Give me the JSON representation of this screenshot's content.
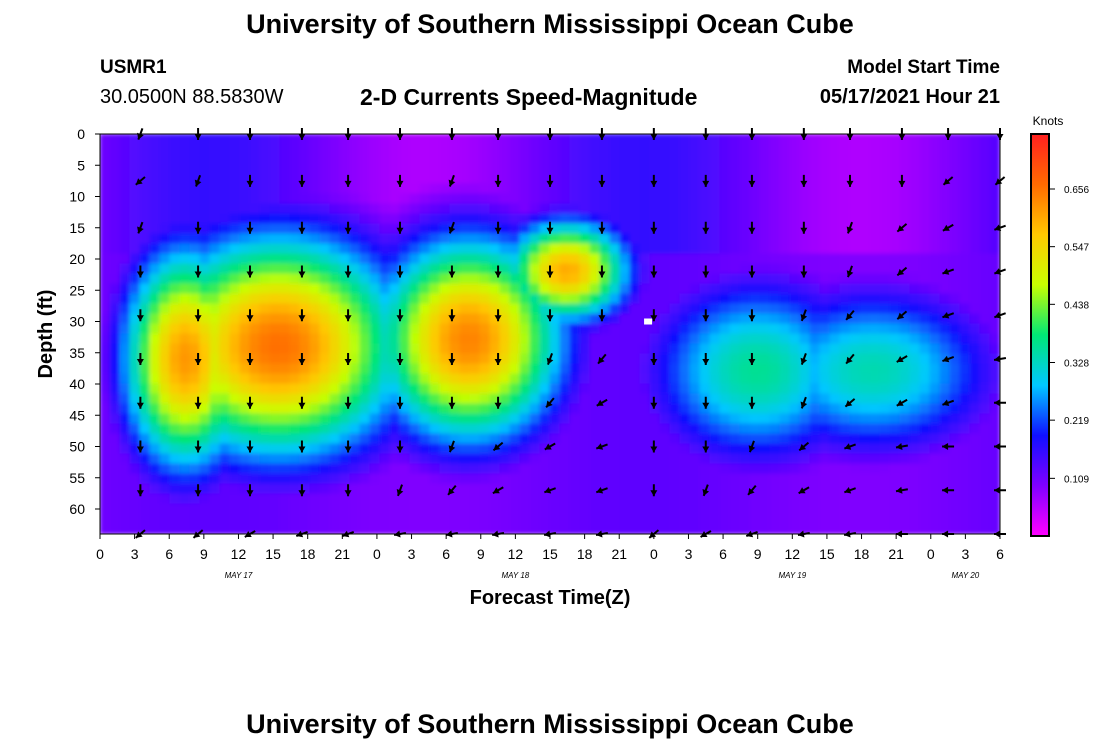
{
  "title_top": "University of Southern Mississippi Ocean Cube",
  "title_bottom": "University of Southern Mississippi Ocean Cube",
  "station": {
    "id": "USMR1",
    "coords": "30.0500N  88.5830W"
  },
  "model_start": {
    "label": "Model Start Time",
    "value": "05/17/2021 Hour 21"
  },
  "chart_data": {
    "type": "heatmap",
    "title": "2-D Currents Speed-Magnitude",
    "xlabel": "Forecast Time(Z)",
    "ylabel": "Depth (ft)",
    "x_ticks": [
      "0",
      "3",
      "6",
      "9",
      "12",
      "15",
      "18",
      "21",
      "0",
      "3",
      "6",
      "9",
      "12",
      "15",
      "18",
      "21",
      "0",
      "3",
      "6",
      "9",
      "12",
      "15",
      "18",
      "21",
      "0",
      "3",
      "6"
    ],
    "x_date_labels": [
      {
        "label": "MAY 17",
        "hour": 12
      },
      {
        "label": "MAY 18",
        "hour": 36
      },
      {
        "label": "MAY 19",
        "hour": 60
      },
      {
        "label": "MAY 20",
        "hour": 75
      }
    ],
    "x_range_hours": [
      0,
      78
    ],
    "y_ticks": [
      "0",
      "5",
      "10",
      "15",
      "20",
      "25",
      "30",
      "35",
      "40",
      "45",
      "50",
      "55",
      "60"
    ],
    "y_range_ft": [
      0,
      64
    ],
    "colorbar": {
      "label": "Knots",
      "ticks": [
        "0.656",
        "0.547",
        "0.438",
        "0.328",
        "0.219",
        "0.109"
      ],
      "range": [
        0.0,
        0.76
      ],
      "colors": [
        "#ff00ff",
        "#8000ff",
        "#1010ff",
        "#00c8ff",
        "#00e676",
        "#c8ff00",
        "#ffc800",
        "#ff6a00",
        "#ff2020"
      ]
    },
    "hotspots": [
      {
        "hour": 15.5,
        "depth": 34,
        "speed": 0.66,
        "rh": 8,
        "rd": 13
      },
      {
        "hour": 7.5,
        "depth": 36,
        "speed": 0.62,
        "rh": 4,
        "rd": 13
      },
      {
        "hour": 32,
        "depth": 33,
        "speed": 0.64,
        "rh": 6,
        "rd": 12
      },
      {
        "hour": 40.5,
        "depth": 22,
        "speed": 0.6,
        "rh": 4,
        "rd": 6
      },
      {
        "hour": 57,
        "depth": 38,
        "speed": 0.36,
        "rh": 7,
        "rd": 11
      },
      {
        "hour": 67,
        "depth": 38,
        "speed": 0.34,
        "rh": 8,
        "rd": 10
      }
    ],
    "marker": {
      "hour": 47.5,
      "depth": 30
    },
    "vectors": {
      "hours": [
        3.5,
        8.5,
        13,
        17.5,
        21.5,
        26,
        30.5,
        34.5,
        39,
        43.5,
        48,
        52.5,
        56.5,
        61,
        65,
        69.5,
        73.5,
        78
      ],
      "depths": [
        0,
        7.5,
        15,
        22,
        29,
        36,
        43,
        50,
        57,
        64
      ],
      "directions_deg": [
        [
          200,
          180,
          180,
          180,
          180,
          180,
          180,
          180,
          180,
          180,
          180,
          180,
          180,
          180,
          180,
          180,
          180,
          180
        ],
        [
          230,
          200,
          180,
          180,
          180,
          180,
          200,
          180,
          180,
          180,
          180,
          180,
          180,
          180,
          180,
          180,
          230,
          230
        ],
        [
          200,
          180,
          180,
          180,
          180,
          180,
          200,
          180,
          180,
          180,
          180,
          180,
          180,
          180,
          200,
          230,
          240,
          250
        ],
        [
          180,
          180,
          180,
          180,
          180,
          180,
          180,
          180,
          180,
          180,
          180,
          180,
          180,
          180,
          200,
          230,
          250,
          250
        ],
        [
          180,
          180,
          180,
          180,
          180,
          180,
          180,
          180,
          180,
          180,
          180,
          180,
          180,
          200,
          220,
          230,
          250,
          250
        ],
        [
          180,
          180,
          180,
          180,
          180,
          180,
          180,
          180,
          200,
          220,
          180,
          180,
          180,
          200,
          220,
          240,
          250,
          260
        ],
        [
          180,
          180,
          180,
          180,
          180,
          180,
          180,
          180,
          220,
          240,
          180,
          180,
          180,
          200,
          230,
          240,
          250,
          270
        ],
        [
          180,
          180,
          180,
          180,
          180,
          180,
          200,
          230,
          240,
          250,
          180,
          180,
          200,
          230,
          250,
          260,
          270,
          270
        ],
        [
          180,
          180,
          180,
          180,
          180,
          200,
          220,
          240,
          250,
          250,
          180,
          200,
          220,
          240,
          250,
          260,
          270,
          270
        ],
        [
          230,
          230,
          240,
          250,
          250,
          260,
          260,
          260,
          260,
          260,
          230,
          240,
          250,
          260,
          260,
          270,
          270,
          270
        ]
      ]
    }
  }
}
